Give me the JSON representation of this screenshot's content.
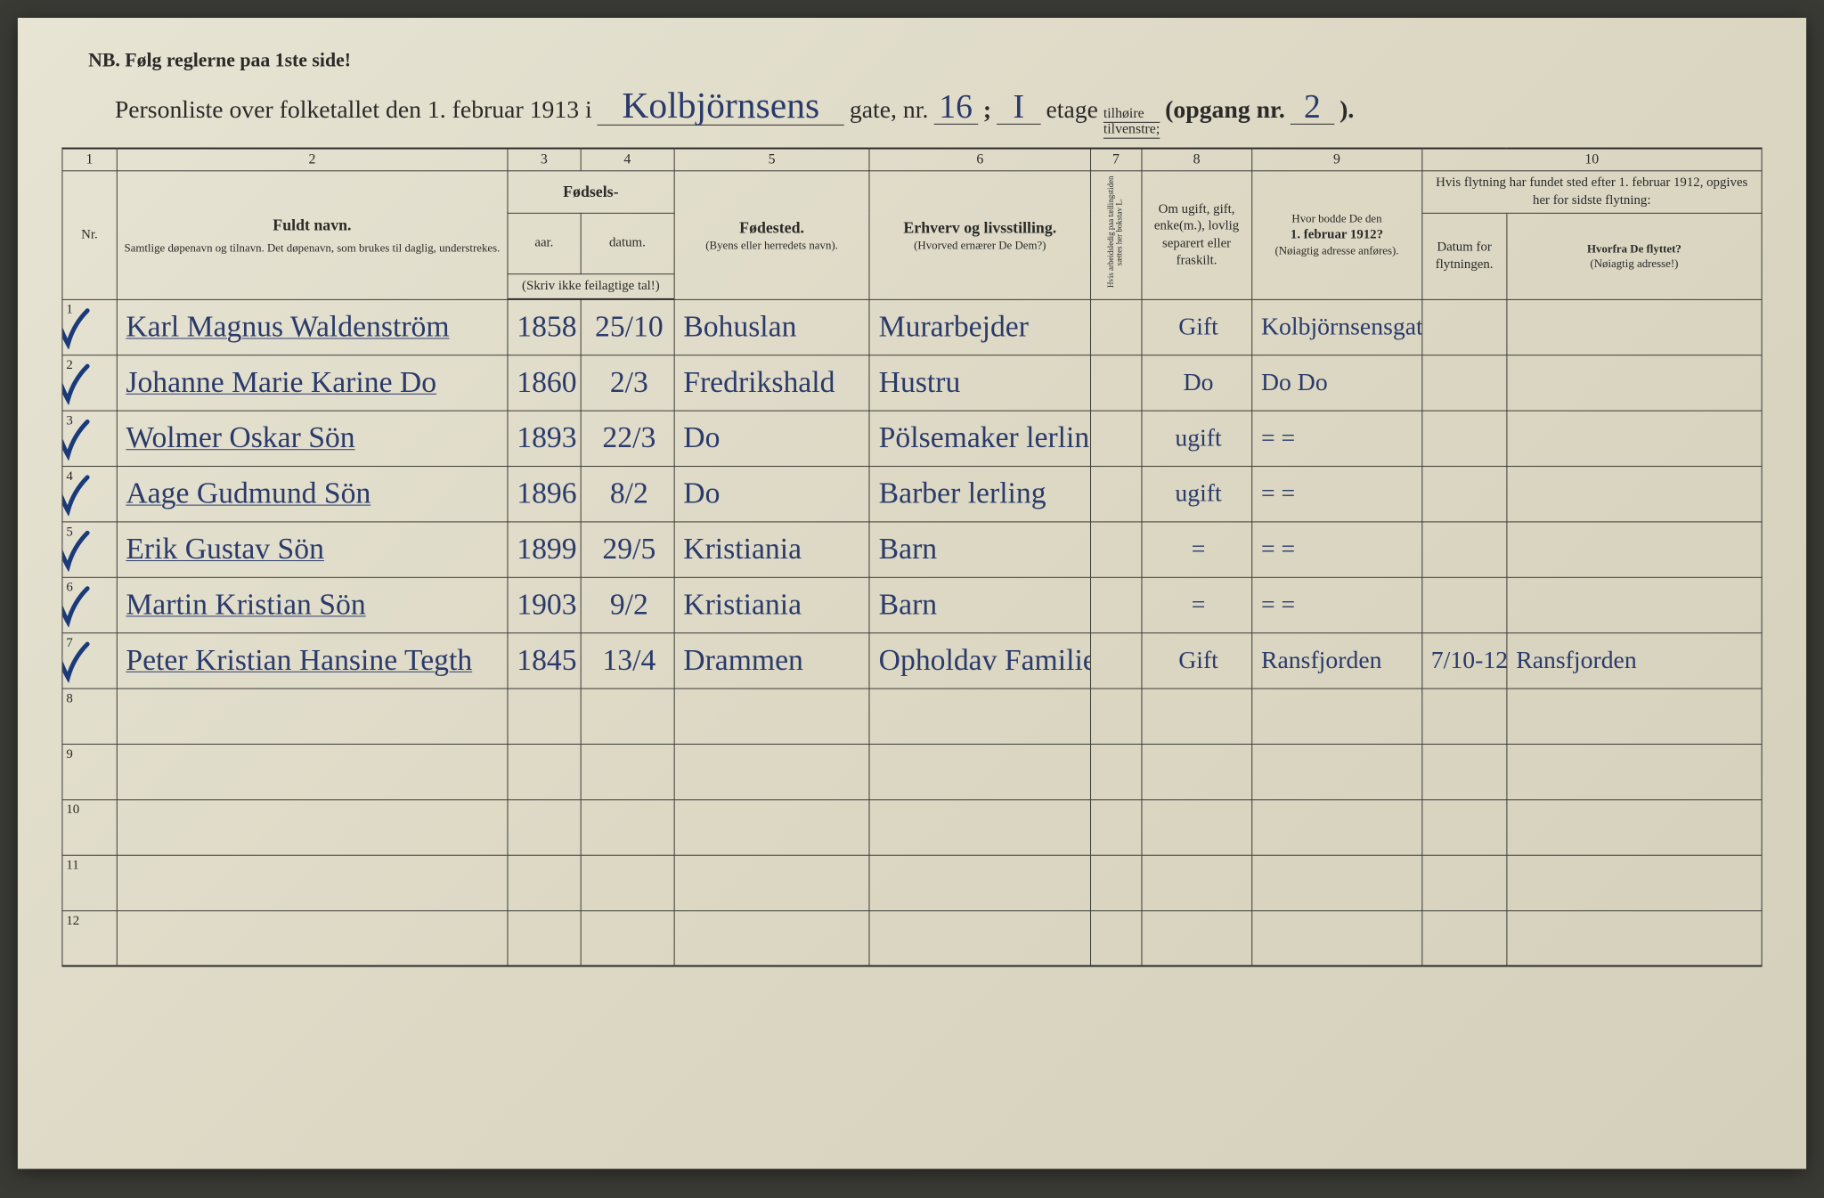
{
  "header": {
    "nb_text": "NB.  Følg reglerne paa 1ste side!",
    "title_prefix": "Personliste over folketallet den 1. februar 1913 i",
    "street_hw": "Kolbjörnsens",
    "gate_label": "gate, nr.",
    "gate_nr_hw": "16",
    "semicolon": ";",
    "etage_hw": "I",
    "etage_label": "etage",
    "stack_top": "tilhøire",
    "stack_bottom": "tilvenstre;",
    "opgang_prefix": "(opgang nr.",
    "opgang_hw": "2",
    "opgang_suffix": ")."
  },
  "columns": {
    "group_numbers": [
      "1",
      "2",
      "3",
      "4",
      "5",
      "6",
      "7",
      "8",
      "9",
      "10"
    ],
    "nr": "Nr.",
    "c2_bold": "Fuldt navn.",
    "c2_sub": "Samtlige døpenavn og tilnavn. Det døpenavn, som brukes til daglig, understrekes.",
    "c34_top": "Fødsels-",
    "c3": "aar.",
    "c4": "datum.",
    "c34_note": "(Skriv ikke feilagtige tal!)",
    "c5_bold": "Fødested.",
    "c5_sub": "(Byens eller herredets navn).",
    "c6_bold": "Erhverv og livsstilling.",
    "c6_sub": "(Hvorved ernærer De Dem?)",
    "c7_rot": "Hvis arbeidsledig paa tællingstiden sættes her bokstav L.",
    "c8": "Om ugift, gift, enke(m.), lovlig separert eller fraskilt.",
    "c9_top": "Hvor bodde De den",
    "c9_bold": "1. februar 1912?",
    "c9_sub": "(Nøiagtig adresse anføres).",
    "c10_top": "Hvis flytning har fundet sted efter 1. februar 1912, opgives her for sidste flytning:",
    "c10a": "Datum for flytningen.",
    "c10b_top": "Hvorfra De flyttet?",
    "c10b_sub": "(Nøiagtig adresse!)"
  },
  "rows": [
    {
      "nr": "1",
      "check": true,
      "name": "Karl Magnus Waldenström",
      "year": "1858",
      "date": "25/10",
      "birthplace": "Bohuslan",
      "occupation": "Murarbejder",
      "c7": "",
      "status": "Gift",
      "addr1912": "Kolbjörnsensgate",
      "moved_date": "",
      "moved_from": ""
    },
    {
      "nr": "2",
      "check": true,
      "name": "Johanne Marie Karine  Do",
      "year": "1860",
      "date": "2/3",
      "birthplace": "Fredrikshald",
      "occupation": "Hustru",
      "c7": "",
      "status": "Do",
      "addr1912": "Do   Do",
      "moved_date": "",
      "moved_from": ""
    },
    {
      "nr": "3",
      "check": true,
      "name": "Wolmer Oskar   Sön",
      "year": "1893",
      "date": "22/3",
      "birthplace": "Do",
      "occupation": "Pölsemaker lerling",
      "c7": "",
      "status": "ugift",
      "addr1912": "=      =",
      "moved_date": "",
      "moved_from": ""
    },
    {
      "nr": "4",
      "check": true,
      "name": "Aage Gudmund   Sön",
      "year": "1896",
      "date": "8/2",
      "birthplace": "Do",
      "occupation": "Barber  lerling",
      "c7": "",
      "status": "ugift",
      "addr1912": "=      =",
      "moved_date": "",
      "moved_from": ""
    },
    {
      "nr": "5",
      "check": true,
      "name": "Erik Gustav   Sön",
      "year": "1899",
      "date": "29/5",
      "birthplace": "Kristiania",
      "occupation": "Barn",
      "c7": "",
      "status": "=",
      "addr1912": "=      =",
      "moved_date": "",
      "moved_from": ""
    },
    {
      "nr": "6",
      "check": true,
      "name": "Martin Kristian   Sön",
      "year": "1903",
      "date": "9/2",
      "birthplace": "Kristiania",
      "occupation": "Barn",
      "c7": "",
      "status": "=",
      "addr1912": "=      =",
      "moved_date": "",
      "moved_from": ""
    },
    {
      "nr": "7",
      "check": true,
      "name": "Peter Kristian Hansine Tegth",
      "year": "1845",
      "date": "13/4",
      "birthplace": "Drammen",
      "occupation": "Opholdav Familien",
      "c7": "",
      "status": "Gift",
      "addr1912": "Ransfjorden",
      "moved_date": "7/10-12",
      "moved_from": "Ransfjorden"
    },
    {
      "nr": "8",
      "check": false,
      "name": "",
      "year": "",
      "date": "",
      "birthplace": "",
      "occupation": "",
      "c7": "",
      "status": "",
      "addr1912": "",
      "moved_date": "",
      "moved_from": ""
    },
    {
      "nr": "9",
      "check": false,
      "name": "",
      "year": "",
      "date": "",
      "birthplace": "",
      "occupation": "",
      "c7": "",
      "status": "",
      "addr1912": "",
      "moved_date": "",
      "moved_from": ""
    },
    {
      "nr": "10",
      "check": false,
      "name": "",
      "year": "",
      "date": "",
      "birthplace": "",
      "occupation": "",
      "c7": "",
      "status": "",
      "addr1912": "",
      "moved_date": "",
      "moved_from": ""
    },
    {
      "nr": "11",
      "check": false,
      "name": "",
      "year": "",
      "date": "",
      "birthplace": "",
      "occupation": "",
      "c7": "",
      "status": "",
      "addr1912": "",
      "moved_date": "",
      "moved_from": ""
    },
    {
      "nr": "12",
      "check": false,
      "name": "",
      "year": "",
      "date": "",
      "birthplace": "",
      "occupation": "",
      "c7": "",
      "status": "",
      "addr1912": "",
      "moved_date": "",
      "moved_from": ""
    }
  ],
  "style": {
    "page_bg": "#dcd8c4",
    "ink_print": "#2a2a28",
    "ink_handwriting": "#2a3a6a",
    "checkmark_color": "#1a3a7a",
    "border_color": "#3a3a35"
  }
}
